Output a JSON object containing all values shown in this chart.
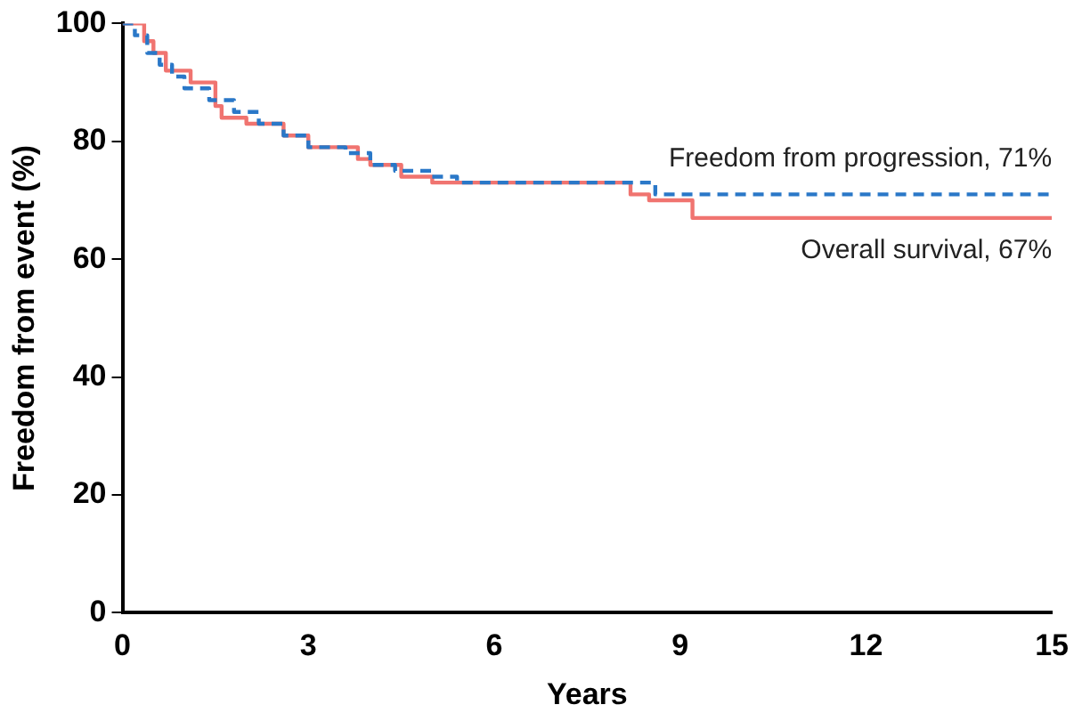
{
  "chart_data": {
    "type": "step",
    "xlabel": "Years",
    "ylabel": "Freedom from event (%)",
    "xlim": [
      0,
      15
    ],
    "xticks": [
      0,
      3,
      6,
      9,
      12,
      15
    ],
    "ylim": [
      0,
      100
    ],
    "yticks": [
      0,
      20,
      40,
      60,
      80,
      100
    ],
    "grid": false,
    "legend": false,
    "series": [
      {
        "color": "#f07470",
        "line_style": "solid",
        "x": [
          0,
          0.35,
          0.5,
          0.7,
          1.1,
          1.5,
          1.6,
          2.0,
          2.6,
          3.0,
          3.8,
          4.0,
          4.5,
          5.0,
          8.2,
          8.5,
          9.2,
          15
        ],
        "values": [
          100,
          97,
          95,
          92,
          90,
          86,
          84,
          83,
          81,
          79,
          77,
          76,
          74,
          73,
          71,
          70,
          67,
          67
        ]
      },
      {
        "color": "#2a78c8",
        "line_style": "dashed",
        "x": [
          0,
          0.2,
          0.4,
          0.6,
          0.8,
          1.0,
          1.4,
          1.8,
          2.2,
          2.6,
          3.0,
          3.6,
          4.0,
          4.4,
          5.0,
          5.4,
          8.4,
          8.6,
          15
        ],
        "values": [
          100,
          98,
          95,
          93,
          91,
          89,
          87,
          85,
          83,
          81,
          79,
          78,
          76,
          75,
          74,
          73,
          73,
          71,
          71
        ]
      }
    ],
    "annotations": [
      "Freedom from progression, 71%",
      "Overall survival, 67%"
    ]
  }
}
